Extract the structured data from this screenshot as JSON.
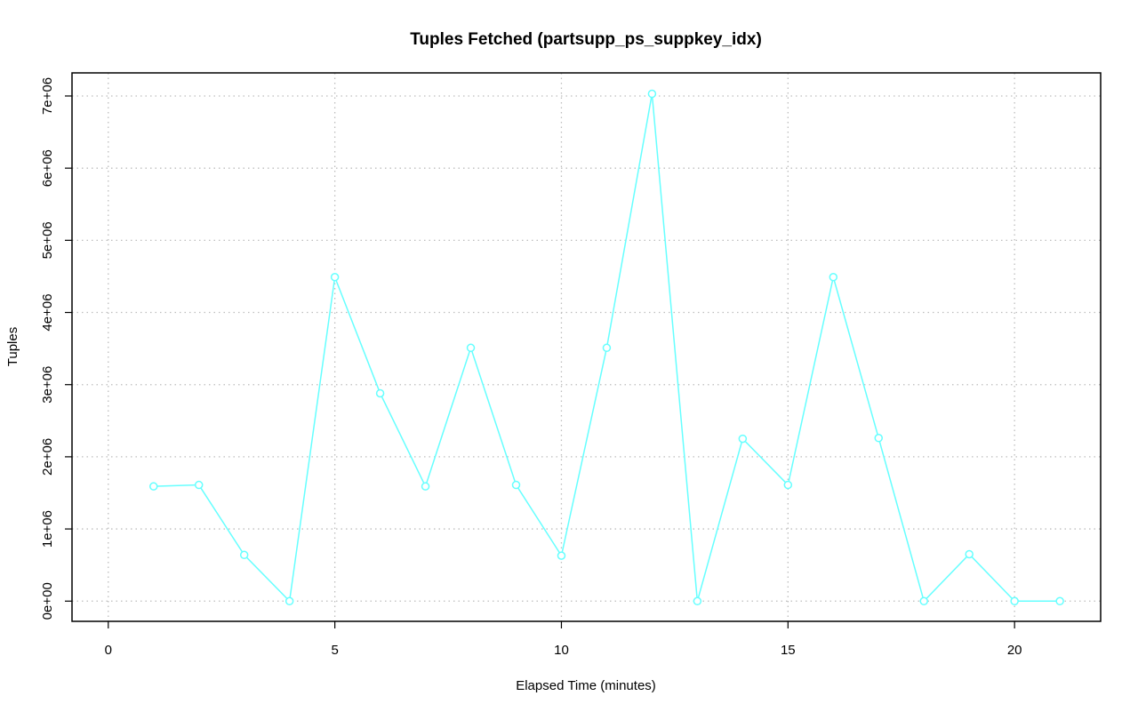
{
  "chart_data": {
    "type": "line",
    "title": "Tuples Fetched (partsupp_ps_suppkey_idx)",
    "xlabel": "Elapsed Time (minutes)",
    "ylabel": "Tuples",
    "xlim": [
      -0.8,
      21.9
    ],
    "ylim": [
      -280000,
      7320000
    ],
    "x_ticks": [
      0,
      5,
      10,
      15,
      20
    ],
    "x_tick_labels": [
      "0",
      "5",
      "10",
      "15",
      "20"
    ],
    "y_ticks": [
      0,
      1000000,
      2000000,
      3000000,
      4000000,
      5000000,
      6000000,
      7000000
    ],
    "y_tick_labels": [
      "0e+00",
      "1e+06",
      "2e+06",
      "3e+06",
      "4e+06",
      "5e+06",
      "6e+06",
      "7e+06"
    ],
    "grid": true,
    "series": [
      {
        "color": "#66ffff",
        "x": [
          1,
          2,
          3,
          4,
          5,
          6,
          7,
          8,
          9,
          10,
          11,
          12,
          13,
          14,
          15,
          16,
          17,
          18,
          19,
          20,
          21
        ],
        "values": [
          1590000,
          1610000,
          640000,
          0,
          4490000,
          2880000,
          1590000,
          3510000,
          1610000,
          630000,
          3510000,
          7030000,
          0,
          2250000,
          1610000,
          4490000,
          2260000,
          0,
          650000,
          0,
          0
        ]
      }
    ]
  }
}
